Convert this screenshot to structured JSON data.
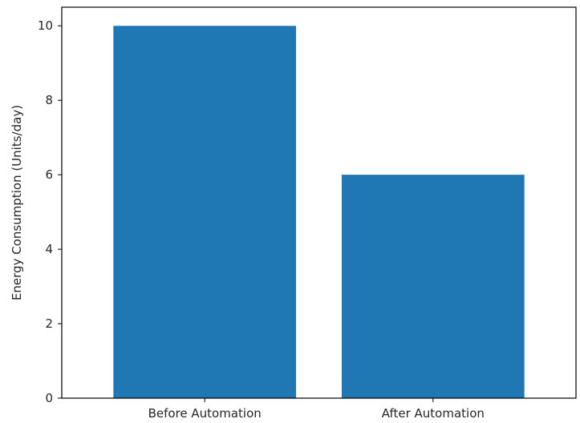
{
  "chart_data": {
    "type": "bar",
    "title": "",
    "xlabel": "",
    "ylabel": "Energy Consumption (Units/day)",
    "categories": [
      "Before Automation",
      "After Automation"
    ],
    "values": [
      10,
      6
    ],
    "ylim": [
      0,
      10.5
    ],
    "yticks": [
      0,
      2,
      4,
      6,
      8,
      10
    ],
    "grid": false,
    "bar_color": "#1f77b4"
  }
}
